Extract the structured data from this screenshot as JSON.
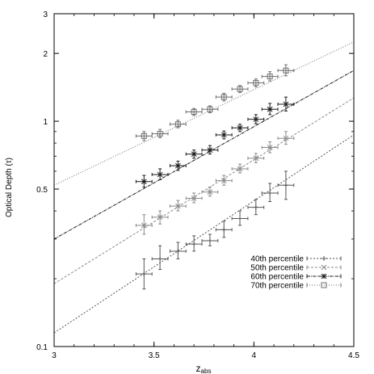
{
  "chart_data": {
    "type": "scatter",
    "xlabel": "z",
    "xlabel_sub": "abs",
    "ylabel": "Optical Depth (τ)",
    "xlim": [
      3,
      4.5
    ],
    "ylim": [
      0.1,
      3
    ],
    "y_scale": "log",
    "grid": false,
    "legend_position": "bottom-right",
    "x_ticks": [
      3,
      3.5,
      4,
      4.5
    ],
    "x_tick_labels": [
      "3",
      "3.5",
      "4",
      "4.5"
    ],
    "y_ticks": [
      0.1,
      0.5,
      1,
      2,
      3
    ],
    "y_tick_labels": [
      "0.1",
      "0.5",
      "1",
      "2",
      "3"
    ],
    "series": [
      {
        "name": "40th percentile",
        "color": "#555555",
        "marker": "plus",
        "points": [
          {
            "x": 3.45,
            "y": 0.21,
            "xerr": 0.04,
            "ylo": 0.18,
            "yhi": 0.245
          },
          {
            "x": 3.53,
            "y": 0.245,
            "xerr": 0.04,
            "ylo": 0.22,
            "yhi": 0.28
          },
          {
            "x": 3.62,
            "y": 0.265,
            "xerr": 0.04,
            "ylo": 0.245,
            "yhi": 0.29
          },
          {
            "x": 3.7,
            "y": 0.285,
            "xerr": 0.04,
            "ylo": 0.265,
            "yhi": 0.31
          },
          {
            "x": 3.78,
            "y": 0.295,
            "xerr": 0.04,
            "ylo": 0.28,
            "yhi": 0.315
          },
          {
            "x": 3.85,
            "y": 0.33,
            "xerr": 0.04,
            "ylo": 0.305,
            "yhi": 0.36
          },
          {
            "x": 3.93,
            "y": 0.37,
            "xerr": 0.04,
            "ylo": 0.345,
            "yhi": 0.4
          },
          {
            "x": 4.01,
            "y": 0.415,
            "xerr": 0.04,
            "ylo": 0.385,
            "yhi": 0.45
          },
          {
            "x": 4.08,
            "y": 0.48,
            "xerr": 0.04,
            "ylo": 0.44,
            "yhi": 0.53
          },
          {
            "x": 4.16,
            "y": 0.52,
            "xerr": 0.04,
            "ylo": 0.45,
            "yhi": 0.6
          }
        ],
        "fit": {
          "x0": 3,
          "y0": 0.115,
          "x1": 4.5,
          "y1": 0.87
        }
      },
      {
        "name": "50th percentile",
        "color": "#8a8a8a",
        "marker": "x",
        "points": [
          {
            "x": 3.45,
            "y": 0.345,
            "xerr": 0.04,
            "ylo": 0.315,
            "yhi": 0.385
          },
          {
            "x": 3.53,
            "y": 0.375,
            "xerr": 0.04,
            "ylo": 0.35,
            "yhi": 0.4
          },
          {
            "x": 3.62,
            "y": 0.42,
            "xerr": 0.04,
            "ylo": 0.4,
            "yhi": 0.445
          },
          {
            "x": 3.7,
            "y": 0.455,
            "xerr": 0.04,
            "ylo": 0.435,
            "yhi": 0.48
          },
          {
            "x": 3.78,
            "y": 0.485,
            "xerr": 0.04,
            "ylo": 0.465,
            "yhi": 0.51
          },
          {
            "x": 3.85,
            "y": 0.545,
            "xerr": 0.04,
            "ylo": 0.52,
            "yhi": 0.575
          },
          {
            "x": 3.93,
            "y": 0.615,
            "xerr": 0.04,
            "ylo": 0.59,
            "yhi": 0.645
          },
          {
            "x": 4.01,
            "y": 0.685,
            "xerr": 0.04,
            "ylo": 0.655,
            "yhi": 0.72
          },
          {
            "x": 4.08,
            "y": 0.765,
            "xerr": 0.04,
            "ylo": 0.725,
            "yhi": 0.81
          },
          {
            "x": 4.16,
            "y": 0.84,
            "xerr": 0.04,
            "ylo": 0.79,
            "yhi": 0.9
          }
        ],
        "fit": {
          "x0": 3,
          "y0": 0.19,
          "x1": 4.5,
          "y1": 1.27
        }
      },
      {
        "name": "60th percentile",
        "color": "#1a1a1a",
        "marker": "star",
        "points": [
          {
            "x": 3.45,
            "y": 0.54,
            "xerr": 0.04,
            "ylo": 0.51,
            "yhi": 0.575
          },
          {
            "x": 3.53,
            "y": 0.58,
            "xerr": 0.04,
            "ylo": 0.55,
            "yhi": 0.615
          },
          {
            "x": 3.62,
            "y": 0.635,
            "xerr": 0.04,
            "ylo": 0.605,
            "yhi": 0.665
          },
          {
            "x": 3.7,
            "y": 0.715,
            "xerr": 0.04,
            "ylo": 0.685,
            "yhi": 0.745
          },
          {
            "x": 3.78,
            "y": 0.745,
            "xerr": 0.04,
            "ylo": 0.715,
            "yhi": 0.78
          },
          {
            "x": 3.85,
            "y": 0.87,
            "xerr": 0.04,
            "ylo": 0.835,
            "yhi": 0.905
          },
          {
            "x": 3.93,
            "y": 0.935,
            "xerr": 0.04,
            "ylo": 0.9,
            "yhi": 0.97
          },
          {
            "x": 4.01,
            "y": 1.02,
            "xerr": 0.04,
            "ylo": 0.975,
            "yhi": 1.07
          },
          {
            "x": 4.08,
            "y": 1.13,
            "xerr": 0.04,
            "ylo": 1.07,
            "yhi": 1.2
          },
          {
            "x": 4.16,
            "y": 1.19,
            "xerr": 0.04,
            "ylo": 1.11,
            "yhi": 1.28
          }
        ],
        "fit": {
          "x0": 3,
          "y0": 0.3,
          "x1": 4.5,
          "y1": 1.68
        }
      },
      {
        "name": "70th percentile",
        "color": "#6e6e6e",
        "marker": "square",
        "points": [
          {
            "x": 3.45,
            "y": 0.86,
            "xerr": 0.04,
            "ylo": 0.82,
            "yhi": 0.9
          },
          {
            "x": 3.53,
            "y": 0.88,
            "xerr": 0.04,
            "ylo": 0.845,
            "yhi": 0.92
          },
          {
            "x": 3.62,
            "y": 0.97,
            "xerr": 0.04,
            "ylo": 0.935,
            "yhi": 1.01
          },
          {
            "x": 3.7,
            "y": 1.1,
            "xerr": 0.04,
            "ylo": 1.06,
            "yhi": 1.14
          },
          {
            "x": 3.78,
            "y": 1.13,
            "xerr": 0.04,
            "ylo": 1.09,
            "yhi": 1.17
          },
          {
            "x": 3.85,
            "y": 1.28,
            "xerr": 0.04,
            "ylo": 1.23,
            "yhi": 1.33
          },
          {
            "x": 3.93,
            "y": 1.39,
            "xerr": 0.04,
            "ylo": 1.34,
            "yhi": 1.44
          },
          {
            "x": 4.01,
            "y": 1.48,
            "xerr": 0.04,
            "ylo": 1.42,
            "yhi": 1.54
          },
          {
            "x": 4.08,
            "y": 1.58,
            "xerr": 0.04,
            "ylo": 1.51,
            "yhi": 1.66
          },
          {
            "x": 4.16,
            "y": 1.68,
            "xerr": 0.04,
            "ylo": 1.59,
            "yhi": 1.78
          }
        ],
        "fit": {
          "x0": 3,
          "y0": 0.52,
          "x1": 4.5,
          "y1": 2.25
        }
      }
    ]
  }
}
